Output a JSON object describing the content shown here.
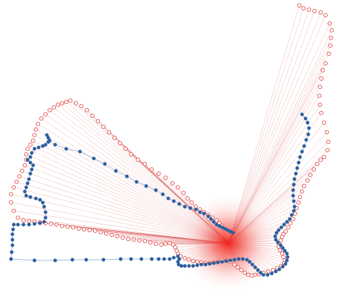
{
  "chart_data": {
    "type": "scatter",
    "grid": false,
    "legend": "none",
    "colors": {
      "ring_stroke": "#e0504c",
      "spoke_stroke": "#d9534f",
      "path_fill": "#2d5fa0",
      "path_line": "#5a7fb0",
      "center_glow": "#f2231b",
      "background": "#ffffff"
    },
    "center": [
      331,
      353
    ],
    "series": [
      {
        "role": "ring",
        "marker": "open-circle",
        "points": [
          [
            434,
            8
          ],
          [
            440,
            12
          ],
          [
            448,
            14
          ],
          [
            456,
            16
          ],
          [
            465,
            18
          ],
          [
            472,
            22
          ],
          [
            478,
            34
          ],
          [
            481,
            44
          ],
          [
            480,
            55
          ],
          [
            479,
            66
          ],
          [
            477,
            78
          ],
          [
            472,
            92
          ],
          [
            468,
            102
          ],
          [
            466,
            114
          ],
          [
            464,
            126
          ],
          [
            463,
            139
          ],
          [
            464,
            152
          ],
          [
            466,
            164
          ],
          [
            470,
            178
          ],
          [
            474,
            192
          ],
          [
            476,
            206
          ],
          [
            475,
            218
          ],
          [
            470,
            228
          ],
          [
            465,
            232
          ],
          [
            460,
            238
          ],
          [
            455,
            246
          ],
          [
            450,
            254
          ],
          [
            446,
            262
          ],
          [
            441,
            270
          ],
          [
            438,
            278
          ],
          [
            435,
            286
          ],
          [
            433,
            294
          ],
          [
            430,
            302
          ],
          [
            428,
            310
          ],
          [
            425,
            318
          ],
          [
            421,
            324
          ],
          [
            418,
            330
          ],
          [
            414,
            336
          ],
          [
            411,
            340
          ],
          [
            409,
            344
          ],
          [
            407,
            349
          ],
          [
            405,
            354
          ],
          [
            404,
            358
          ],
          [
            406,
            363
          ],
          [
            409,
            368
          ],
          [
            411,
            373
          ],
          [
            413,
            378
          ],
          [
            412,
            382
          ],
          [
            408,
            386
          ],
          [
            402,
            389
          ],
          [
            396,
            392
          ],
          [
            389,
            394
          ],
          [
            382,
            396
          ],
          [
            376,
            398
          ],
          [
            370,
            399
          ],
          [
            365,
            400
          ],
          [
            360,
            399
          ],
          [
            355,
            396
          ],
          [
            350,
            392
          ],
          [
            345,
            388
          ],
          [
            340,
            384
          ],
          [
            334,
            380
          ],
          [
            328,
            378
          ],
          [
            322,
            378
          ],
          [
            316,
            380
          ],
          [
            310,
            381
          ],
          [
            304,
            382
          ],
          [
            298,
            382
          ],
          [
            292,
            381
          ],
          [
            286,
            380
          ],
          [
            280,
            379
          ],
          [
            274,
            377
          ],
          [
            268,
            375
          ],
          [
            262,
            372
          ],
          [
            258,
            368
          ],
          [
            256,
            364
          ],
          [
            254,
            359
          ],
          [
            251,
            355
          ],
          [
            246,
            353
          ],
          [
            240,
            354
          ],
          [
            234,
            355
          ],
          [
            226,
            354
          ],
          [
            218,
            352
          ],
          [
            210,
            350
          ],
          [
            202,
            349
          ],
          [
            194,
            348
          ],
          [
            186,
            347
          ],
          [
            178,
            345
          ],
          [
            170,
            343
          ],
          [
            162,
            341
          ],
          [
            154,
            339
          ],
          [
            146,
            337
          ],
          [
            138,
            335
          ],
          [
            130,
            334
          ],
          [
            122,
            333
          ],
          [
            114,
            332
          ],
          [
            106,
            330
          ],
          [
            98,
            329
          ],
          [
            90,
            328
          ],
          [
            82,
            326
          ],
          [
            74,
            325
          ],
          [
            66,
            324
          ],
          [
            58,
            323
          ],
          [
            50,
            322
          ],
          [
            42,
            321
          ],
          [
            34,
            320
          ],
          [
            26,
            316
          ],
          [
            20,
            306
          ],
          [
            16,
            294
          ],
          [
            16,
            282
          ],
          [
            20,
            272
          ],
          [
            24,
            264
          ],
          [
            28,
            256
          ],
          [
            32,
            248
          ],
          [
            36,
            240
          ],
          [
            38,
            232
          ],
          [
            38,
            224
          ],
          [
            40,
            216
          ],
          [
            44,
            210
          ],
          [
            48,
            204
          ],
          [
            50,
            196
          ],
          [
            52,
            188
          ],
          [
            55,
            180
          ],
          [
            60,
            172
          ],
          [
            66,
            166
          ],
          [
            72,
            160
          ],
          [
            78,
            156
          ],
          [
            84,
            152
          ],
          [
            90,
            150
          ],
          [
            96,
            148
          ],
          [
            102,
            146
          ],
          [
            110,
            150
          ],
          [
            118,
            154
          ],
          [
            126,
            160
          ],
          [
            134,
            168
          ],
          [
            142,
            176
          ],
          [
            150,
            184
          ],
          [
            158,
            192
          ],
          [
            166,
            200
          ],
          [
            174,
            208
          ],
          [
            182,
            216
          ],
          [
            190,
            224
          ],
          [
            200,
            232
          ],
          [
            210,
            238
          ],
          [
            220,
            246
          ],
          [
            230,
            252
          ],
          [
            240,
            258
          ],
          [
            250,
            266
          ],
          [
            258,
            272
          ],
          [
            266,
            280
          ],
          [
            272,
            288
          ],
          [
            278,
            294
          ],
          [
            284,
            300
          ],
          [
            290,
            304
          ],
          [
            296,
            308
          ],
          [
            302,
            312
          ],
          [
            308,
            316
          ],
          [
            314,
            320
          ],
          [
            318,
            324
          ],
          [
            322,
            328
          ]
        ]
      },
      {
        "role": "path",
        "marker": "filled-circle",
        "points": [
          [
            438,
            166
          ],
          [
            443,
            172
          ],
          [
            446,
            178
          ],
          [
            448,
            186
          ],
          [
            447,
            195
          ],
          [
            444,
            203
          ],
          [
            441,
            212
          ],
          [
            438,
            220
          ],
          [
            435,
            228
          ],
          [
            433,
            236
          ],
          [
            431,
            244
          ],
          [
            429,
            252
          ],
          [
            427,
            260
          ],
          [
            426,
            268
          ],
          [
            425,
            276
          ],
          [
            425,
            284
          ],
          [
            426,
            292
          ],
          [
            427,
            300
          ],
          [
            426,
            306
          ],
          [
            423,
            312
          ],
          [
            420,
            318
          ],
          [
            416,
            322
          ],
          [
            412,
            326
          ],
          [
            408,
            330
          ],
          [
            404,
            334
          ],
          [
            401,
            338
          ],
          [
            399,
            343
          ],
          [
            400,
            348
          ],
          [
            403,
            352
          ],
          [
            407,
            356
          ],
          [
            410,
            360
          ],
          [
            413,
            364
          ],
          [
            416,
            368
          ],
          [
            417,
            373
          ],
          [
            416,
            378
          ],
          [
            414,
            383
          ],
          [
            410,
            387
          ],
          [
            405,
            391
          ],
          [
            400,
            394
          ],
          [
            394,
            397
          ],
          [
            388,
            399
          ],
          [
            382,
            399
          ],
          [
            378,
            396
          ],
          [
            374,
            392
          ],
          [
            370,
            388
          ],
          [
            366,
            384
          ],
          [
            362,
            380
          ],
          [
            358,
            377
          ],
          [
            352,
            376
          ],
          [
            346,
            376
          ],
          [
            340,
            377
          ],
          [
            334,
            378
          ],
          [
            328,
            379
          ],
          [
            322,
            380
          ],
          [
            316,
            381
          ],
          [
            310,
            382
          ],
          [
            304,
            383
          ],
          [
            298,
            384
          ],
          [
            292,
            384
          ],
          [
            286,
            385
          ],
          [
            280,
            386
          ],
          [
            274,
            386
          ],
          [
            268,
            386
          ],
          [
            263,
            386
          ],
          [
            259,
            384
          ],
          [
            258,
            380
          ],
          [
            260,
            376
          ],
          [
            258,
            372
          ],
          [
            252,
            374
          ],
          [
            246,
            376
          ],
          [
            238,
            376
          ],
          [
            230,
            376
          ],
          [
            220,
            376
          ],
          [
            205,
            376
          ],
          [
            190,
            376
          ],
          [
            175,
            376
          ],
          [
            150,
            377
          ],
          [
            125,
            377
          ],
          [
            105,
            377
          ],
          [
            80,
            378
          ],
          [
            50,
            378
          ],
          [
            16,
            376
          ],
          [
            17,
            366
          ],
          [
            18,
            356
          ],
          [
            18,
            348
          ],
          [
            18,
            340
          ],
          [
            19,
            333
          ],
          [
            20,
            326
          ],
          [
            26,
            326
          ],
          [
            34,
            326
          ],
          [
            42,
            326
          ],
          [
            50,
            325
          ],
          [
            58,
            324
          ],
          [
            64,
            322
          ],
          [
            66,
            316
          ],
          [
            66,
            308
          ],
          [
            64,
            300
          ],
          [
            62,
            294
          ],
          [
            58,
            290
          ],
          [
            52,
            288
          ],
          [
            44,
            286
          ],
          [
            38,
            284
          ],
          [
            36,
            278
          ],
          [
            38,
            272
          ],
          [
            40,
            266
          ],
          [
            42,
            260
          ],
          [
            44,
            252
          ],
          [
            46,
            246
          ],
          [
            48,
            240
          ],
          [
            44,
            236
          ],
          [
            40,
            232
          ],
          [
            44,
            228
          ],
          [
            46,
            222
          ],
          [
            50,
            216
          ],
          [
            56,
            214
          ],
          [
            62,
            212
          ],
          [
            66,
            210
          ],
          [
            70,
            206
          ],
          [
            70,
            200
          ],
          [
            68,
            196
          ],
          [
            72,
            204
          ],
          [
            80,
            210
          ],
          [
            96,
            216
          ],
          [
            116,
            220
          ],
          [
            136,
            230
          ],
          [
            152,
            238
          ],
          [
            168,
            248
          ],
          [
            184,
            256
          ],
          [
            198,
            264
          ],
          [
            212,
            270
          ],
          [
            226,
            276
          ],
          [
            236,
            282
          ],
          [
            244,
            288
          ],
          [
            252,
            292
          ],
          [
            260,
            296
          ],
          [
            268,
            300
          ],
          [
            276,
            302
          ],
          [
            284,
            304
          ],
          [
            290,
            308
          ],
          [
            296,
            310
          ],
          [
            302,
            314
          ],
          [
            306,
            318
          ],
          [
            310,
            322
          ],
          [
            314,
            326
          ],
          [
            318,
            328
          ],
          [
            322,
            330
          ],
          [
            326,
            332
          ],
          [
            330,
            334
          ],
          [
            334,
            336
          ],
          [
            338,
            338
          ]
        ]
      }
    ]
  }
}
